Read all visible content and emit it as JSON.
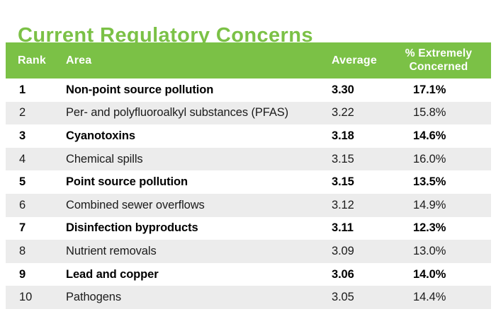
{
  "title": "Current Regulatory Concerns",
  "colors": {
    "green": "#7BC146",
    "stripe": "#ECECEC",
    "header_text": "#FFFFFF",
    "row_text": "#1B1B1B",
    "bold_row_text": "#000000"
  },
  "table": {
    "header": {
      "rank": "Rank",
      "area": "Area",
      "average": "Average",
      "pct_line1": "% Extremely",
      "pct_line2": "Concerned"
    },
    "rows": [
      {
        "rank": "1",
        "area": "Non-point source pollution",
        "average": "3.30",
        "pct": "17.1%",
        "emphasis": true
      },
      {
        "rank": "2",
        "area": "Per- and polyfluoroalkyl substances (PFAS)",
        "average": "3.22",
        "pct": "15.8%",
        "emphasis": false
      },
      {
        "rank": "3",
        "area": "Cyanotoxins",
        "average": "3.18",
        "pct": "14.6%",
        "emphasis": true
      },
      {
        "rank": "4",
        "area": "Chemical spills",
        "average": "3.15",
        "pct": "16.0%",
        "emphasis": false
      },
      {
        "rank": "5",
        "area": "Point source pollution",
        "average": "3.15",
        "pct": "13.5%",
        "emphasis": true
      },
      {
        "rank": "6",
        "area": "Combined sewer overflows",
        "average": "3.12",
        "pct": "14.9%",
        "emphasis": false
      },
      {
        "rank": "7",
        "area": "Disinfection byproducts",
        "average": "3.11",
        "pct": "12.3%",
        "emphasis": true
      },
      {
        "rank": "8",
        "area": "Nutrient removals",
        "average": "3.09",
        "pct": "13.0%",
        "emphasis": false
      },
      {
        "rank": "9",
        "area": "Lead and copper",
        "average": "3.06",
        "pct": "14.0%",
        "emphasis": true
      },
      {
        "rank": "10",
        "area": "Pathogens",
        "average": "3.05",
        "pct": "14.4%",
        "emphasis": false
      }
    ]
  },
  "chart_data": {
    "type": "table",
    "title": "Current Regulatory Concerns",
    "columns": [
      "Rank",
      "Area",
      "Average",
      "% Extremely Concerned"
    ],
    "rows": [
      [
        1,
        "Non-point source pollution",
        3.3,
        17.1
      ],
      [
        2,
        "Per- and polyfluoroalkyl substances (PFAS)",
        3.22,
        15.8
      ],
      [
        3,
        "Cyanotoxins",
        3.18,
        14.6
      ],
      [
        4,
        "Chemical spills",
        3.15,
        16.0
      ],
      [
        5,
        "Point source pollution",
        3.15,
        13.5
      ],
      [
        6,
        "Combined sewer overflows",
        3.12,
        14.9
      ],
      [
        7,
        "Disinfection byproducts",
        3.11,
        12.3
      ],
      [
        8,
        "Nutrient removals",
        3.09,
        13.0
      ],
      [
        9,
        "Lead and copper",
        3.06,
        14.0
      ],
      [
        10,
        "Pathogens",
        3.05,
        14.4
      ]
    ],
    "notes": "Odd-ranked rows rendered bold; even rows on light gray stripe"
  }
}
